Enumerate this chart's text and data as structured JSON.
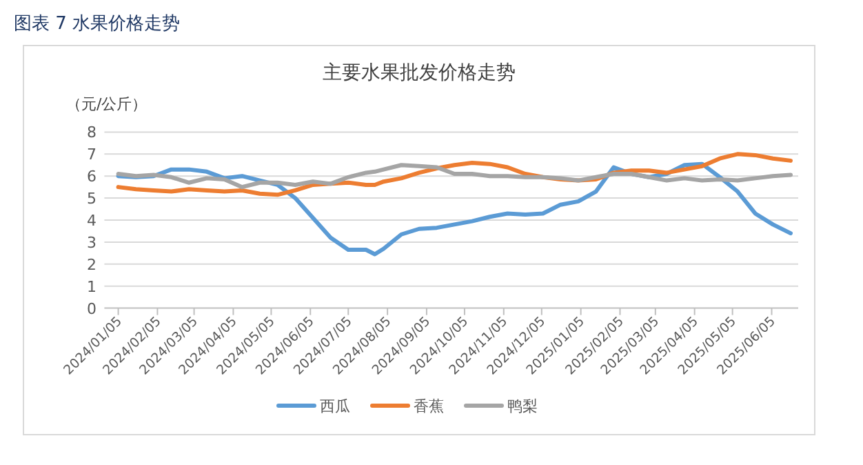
{
  "chart_data": {
    "type": "line",
    "title": "主要水果批发价格走势",
    "ylabel": "（元/公斤）",
    "annotations": [
      "图表 7  水果价格走势"
    ],
    "x": [
      "2024-01-05",
      "2024-01-19",
      "2024-02-02",
      "2024-02-16",
      "2024-03-01",
      "2024-03-15",
      "2024-03-29",
      "2024-04-12",
      "2024-04-26",
      "2024-05-10",
      "2024-05-24",
      "2024-06-07",
      "2024-06-21",
      "2024-07-05",
      "2024-07-19",
      "2024-07-26",
      "2024-08-02",
      "2024-08-16",
      "2024-08-30",
      "2024-09-13",
      "2024-09-27",
      "2024-10-11",
      "2024-10-25",
      "2024-11-08",
      "2024-11-22",
      "2024-12-06",
      "2024-12-20",
      "2025-01-03",
      "2025-01-17",
      "2025-01-31",
      "2025-02-14",
      "2025-02-28",
      "2025-03-14",
      "2025-03-28",
      "2025-04-11",
      "2025-04-25",
      "2025-05-09",
      "2025-05-23",
      "2025-06-06",
      "2025-06-20"
    ],
    "series": [
      {
        "name": "西瓜",
        "color": "#5b9bd5",
        "values": [
          6.0,
          5.95,
          6.0,
          6.3,
          6.3,
          6.2,
          5.9,
          6.0,
          5.8,
          5.6,
          5.0,
          4.1,
          3.2,
          2.65,
          2.65,
          2.45,
          2.7,
          3.35,
          3.6,
          3.65,
          3.8,
          3.95,
          4.15,
          4.3,
          4.25,
          4.3,
          4.7,
          4.85,
          5.3,
          6.4,
          6.1,
          5.95,
          6.1,
          6.5,
          6.55,
          5.95,
          5.3,
          4.3,
          3.8,
          3.4
        ]
      },
      {
        "name": "香蕉",
        "color": "#ed7d31",
        "values": [
          5.5,
          5.4,
          5.35,
          5.3,
          5.4,
          5.35,
          5.3,
          5.35,
          5.2,
          5.15,
          5.35,
          5.6,
          5.65,
          5.7,
          5.6,
          5.6,
          5.75,
          5.9,
          6.15,
          6.35,
          6.5,
          6.6,
          6.55,
          6.4,
          6.1,
          5.95,
          5.85,
          5.8,
          5.85,
          6.15,
          6.25,
          6.25,
          6.15,
          6.3,
          6.45,
          6.8,
          7.0,
          6.95,
          6.8,
          6.7
        ]
      },
      {
        "name": "鸭梨",
        "color": "#a5a5a5",
        "values": [
          6.1,
          6.0,
          6.05,
          5.95,
          5.7,
          5.9,
          5.85,
          5.5,
          5.7,
          5.7,
          5.6,
          5.75,
          5.65,
          5.95,
          6.15,
          6.2,
          6.3,
          6.5,
          6.45,
          6.4,
          6.1,
          6.1,
          6.0,
          6.0,
          5.95,
          5.95,
          5.9,
          5.8,
          5.95,
          6.1,
          6.1,
          5.95,
          5.8,
          5.9,
          5.8,
          5.85,
          5.8,
          5.9,
          6.0,
          6.05
        ]
      }
    ],
    "xlim": [
      "2023-12-25",
      "2025-06-26"
    ],
    "xticks": [
      {
        "value": "2024-01-05",
        "label": "2024/01/05"
      },
      {
        "value": "2024-02-05",
        "label": "2024/02/05"
      },
      {
        "value": "2024-03-05",
        "label": "2024/03/05"
      },
      {
        "value": "2024-04-05",
        "label": "2024/04/05"
      },
      {
        "value": "2024-05-05",
        "label": "2024/05/05"
      },
      {
        "value": "2024-06-05",
        "label": "2024/06/05"
      },
      {
        "value": "2024-07-05",
        "label": "2024/07/05"
      },
      {
        "value": "2024-08-05",
        "label": "2024/08/05"
      },
      {
        "value": "2024-09-05",
        "label": "2024/09/05"
      },
      {
        "value": "2024-10-05",
        "label": "2024/10/05"
      },
      {
        "value": "2024-11-05",
        "label": "2024/11/05"
      },
      {
        "value": "2024-12-05",
        "label": "2024/12/05"
      },
      {
        "value": "2025-01-05",
        "label": "2025/01/05"
      },
      {
        "value": "2025-02-05",
        "label": "2025/02/05"
      },
      {
        "value": "2025-03-05",
        "label": "2025/03/05"
      },
      {
        "value": "2025-04-05",
        "label": "2025/04/05"
      },
      {
        "value": "2025-05-05",
        "label": "2025/05/05"
      },
      {
        "value": "2025-06-05",
        "label": "2025/06/05"
      }
    ],
    "ylim": [
      0,
      8
    ],
    "yticks": [
      0,
      1,
      2,
      3,
      4,
      5,
      6,
      7,
      8
    ],
    "grid": "y",
    "legend": "bottom",
    "marker": "none",
    "line_style": "solid"
  }
}
